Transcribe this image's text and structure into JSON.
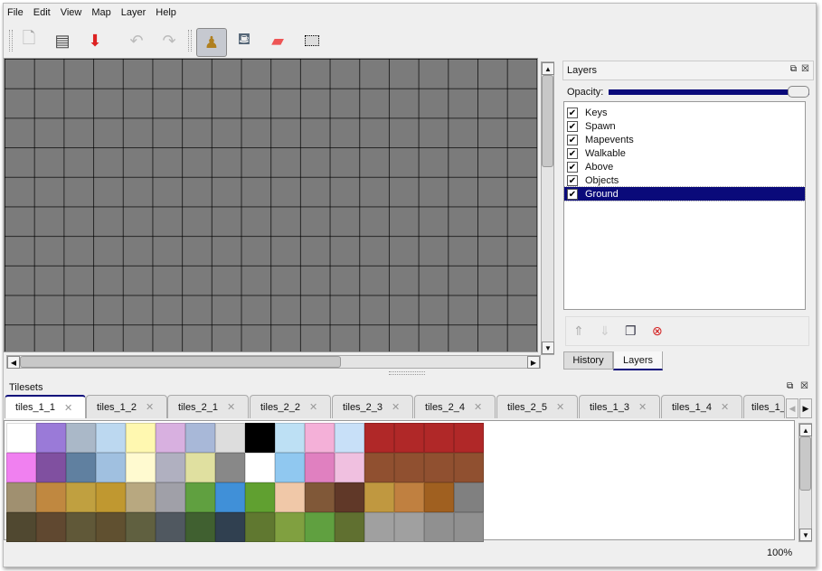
{
  "menu": [
    "File",
    "Edit",
    "View",
    "Map",
    "Layer",
    "Help"
  ],
  "toolbar": [
    {
      "name": "new-file-icon",
      "glyph": "🗋"
    },
    {
      "name": "open-folder-icon",
      "glyph": "🗀"
    },
    {
      "name": "save-icon",
      "glyph": "⬇"
    },
    {
      "name": "undo-icon",
      "glyph": "↶"
    },
    {
      "name": "redo-icon",
      "glyph": "↷"
    },
    {
      "name": "stamp-brush-icon",
      "glyph": "⚲"
    },
    {
      "name": "bucket-fill-icon",
      "glyph": "⛾"
    },
    {
      "name": "eraser-icon",
      "glyph": "▰"
    },
    {
      "name": "rect-select-icon",
      "glyph": "⬚"
    }
  ],
  "layers_panel": {
    "title": "Layers",
    "opacity_label": "Opacity:",
    "opacity": 1.0,
    "layers": [
      {
        "name": "Keys",
        "visible": true
      },
      {
        "name": "Spawn",
        "visible": true
      },
      {
        "name": "Mapevents",
        "visible": true
      },
      {
        "name": "Walkable",
        "visible": true
      },
      {
        "name": "Above",
        "visible": true
      },
      {
        "name": "Objects",
        "visible": true
      },
      {
        "name": "Ground",
        "visible": true,
        "selected": true
      }
    ],
    "tabs": [
      "History",
      "Layers"
    ],
    "active_tab": "Layers"
  },
  "tilesets": {
    "title": "Tilesets",
    "tabs": [
      "tiles_1_1",
      "tiles_1_2",
      "tiles_2_1",
      "tiles_2_2",
      "tiles_2_3",
      "tiles_2_4",
      "tiles_2_5",
      "tiles_1_3",
      "tiles_1_4",
      "tiles_1_"
    ],
    "active_tab": "tiles_1_1"
  },
  "status": {
    "zoom": "100%"
  },
  "colors": {
    "selection": "#0a0a7a",
    "map_bg": "#7b7b7b",
    "delete": "#d32020"
  }
}
